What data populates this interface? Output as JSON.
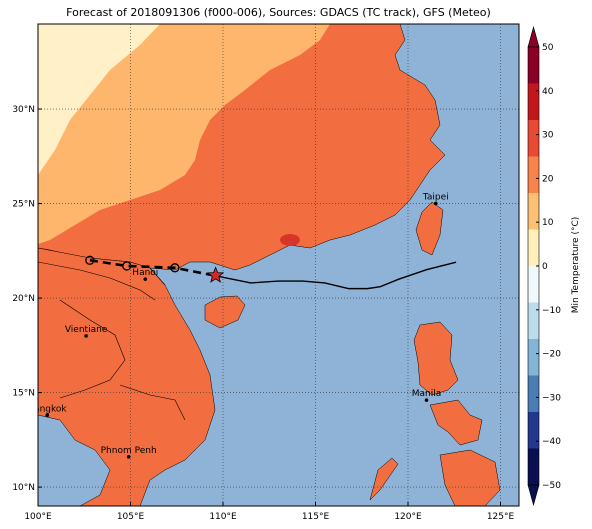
{
  "title": "Forecast of 2018091306 (f000-006), Sources: GDACS (TC track), GFS (Meteo)",
  "map": {
    "lon_range": [
      100,
      126
    ],
    "lat_range": [
      9,
      34.5
    ],
    "lon_ticks": [
      {
        "value": 100,
        "label": "100°E"
      },
      {
        "value": 105,
        "label": "105°E"
      },
      {
        "value": 110,
        "label": "110°E"
      },
      {
        "value": 115,
        "label": "115°E"
      },
      {
        "value": 120,
        "label": "120°E"
      },
      {
        "value": 125,
        "label": "125°E"
      }
    ],
    "lat_ticks": [
      {
        "value": 10,
        "label": "10°N"
      },
      {
        "value": 15,
        "label": "15°N"
      },
      {
        "value": 20,
        "label": "20°N"
      },
      {
        "value": 25,
        "label": "25°N"
      },
      {
        "value": 30,
        "label": "30°N"
      }
    ],
    "cities": [
      {
        "name": "Taipei",
        "lon": 121.5,
        "lat": 25.0
      },
      {
        "name": "Hanoi",
        "lon": 105.8,
        "lat": 21.0
      },
      {
        "name": "Vientiane",
        "lon": 102.6,
        "lat": 18.0
      },
      {
        "name": "Manila",
        "lon": 121.0,
        "lat": 14.6
      },
      {
        "name": "Bangkok",
        "lon": 100.5,
        "lat": 13.8
      },
      {
        "name": "Phnom Penh",
        "lon": 104.9,
        "lat": 11.6
      }
    ],
    "tc_track_observed": [
      [
        122.6,
        21.9
      ],
      [
        121.0,
        21.5
      ],
      [
        119.5,
        21.0
      ],
      [
        118.5,
        20.6
      ],
      [
        117.8,
        20.5
      ],
      [
        116.8,
        20.5
      ],
      [
        115.5,
        20.8
      ],
      [
        114.3,
        20.9
      ],
      [
        113.0,
        20.9
      ],
      [
        111.5,
        20.8
      ],
      [
        110.0,
        21.1
      ],
      [
        109.5,
        21.2
      ]
    ],
    "tc_track_forecast": [
      [
        109.5,
        21.2
      ],
      [
        107.4,
        21.6
      ],
      [
        104.8,
        21.7
      ],
      [
        102.8,
        22.0
      ]
    ],
    "tc_forecast_points": [
      [
        107.4,
        21.6
      ],
      [
        104.8,
        21.7
      ],
      [
        102.8,
        22.0
      ]
    ],
    "tc_current_position": {
      "lon": 109.6,
      "lat": 21.2
    },
    "colors": {
      "ocean": "#8fb3d7",
      "land_warm": "#f26e40",
      "land_mild": "#fdb66c",
      "land_cool": "#fff0c8",
      "hot": "#d8352a",
      "track": "#000000",
      "storm_marker": "#d62728"
    }
  },
  "colorbar": {
    "title": "Min Temperature (°C)",
    "ticks": [
      "50",
      "40",
      "30",
      "20",
      "10",
      "0",
      "−10",
      "−20",
      "−30",
      "−40",
      "−50"
    ],
    "colors": [
      "#8b0026",
      "#c4171d",
      "#e94a33",
      "#f8834c",
      "#fdbf72",
      "#fff0ba",
      "#f0f8fc",
      "#bcdbeb",
      "#84b5d6",
      "#4b7db5",
      "#23378e",
      "#0a0f50"
    ]
  }
}
